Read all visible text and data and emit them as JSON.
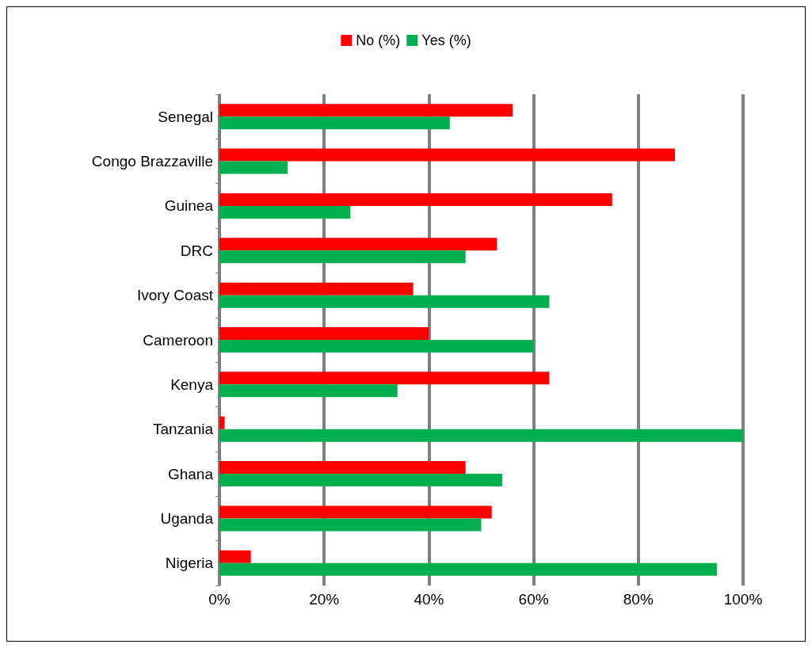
{
  "chart_data": {
    "type": "bar",
    "orientation": "horizontal",
    "categories": [
      "Senegal",
      "Congo Brazzaville",
      "Guinea",
      "DRC",
      "Ivory Coast",
      "Cameroon",
      "Kenya",
      "Tanzania",
      "Ghana",
      "Uganda",
      "Nigeria"
    ],
    "series": [
      {
        "name": "No (%)",
        "color": "#ff0000",
        "values": [
          56,
          87,
          75,
          53,
          37,
          40,
          63,
          1,
          47,
          52,
          6
        ]
      },
      {
        "name": "Yes (%)",
        "color": "#00b050",
        "values": [
          44,
          13,
          25,
          47,
          63,
          60,
          34,
          100,
          54,
          50,
          95
        ]
      }
    ],
    "xlim": [
      0,
      100
    ],
    "xticks": [
      {
        "value": 0,
        "label": "0%"
      },
      {
        "value": 20,
        "label": "20%"
      },
      {
        "value": 40,
        "label": "40%"
      },
      {
        "value": 60,
        "label": "60%"
      },
      {
        "value": 80,
        "label": "80%"
      },
      {
        "value": 100,
        "label": "100%"
      }
    ],
    "grid": "x",
    "legend": "top"
  }
}
